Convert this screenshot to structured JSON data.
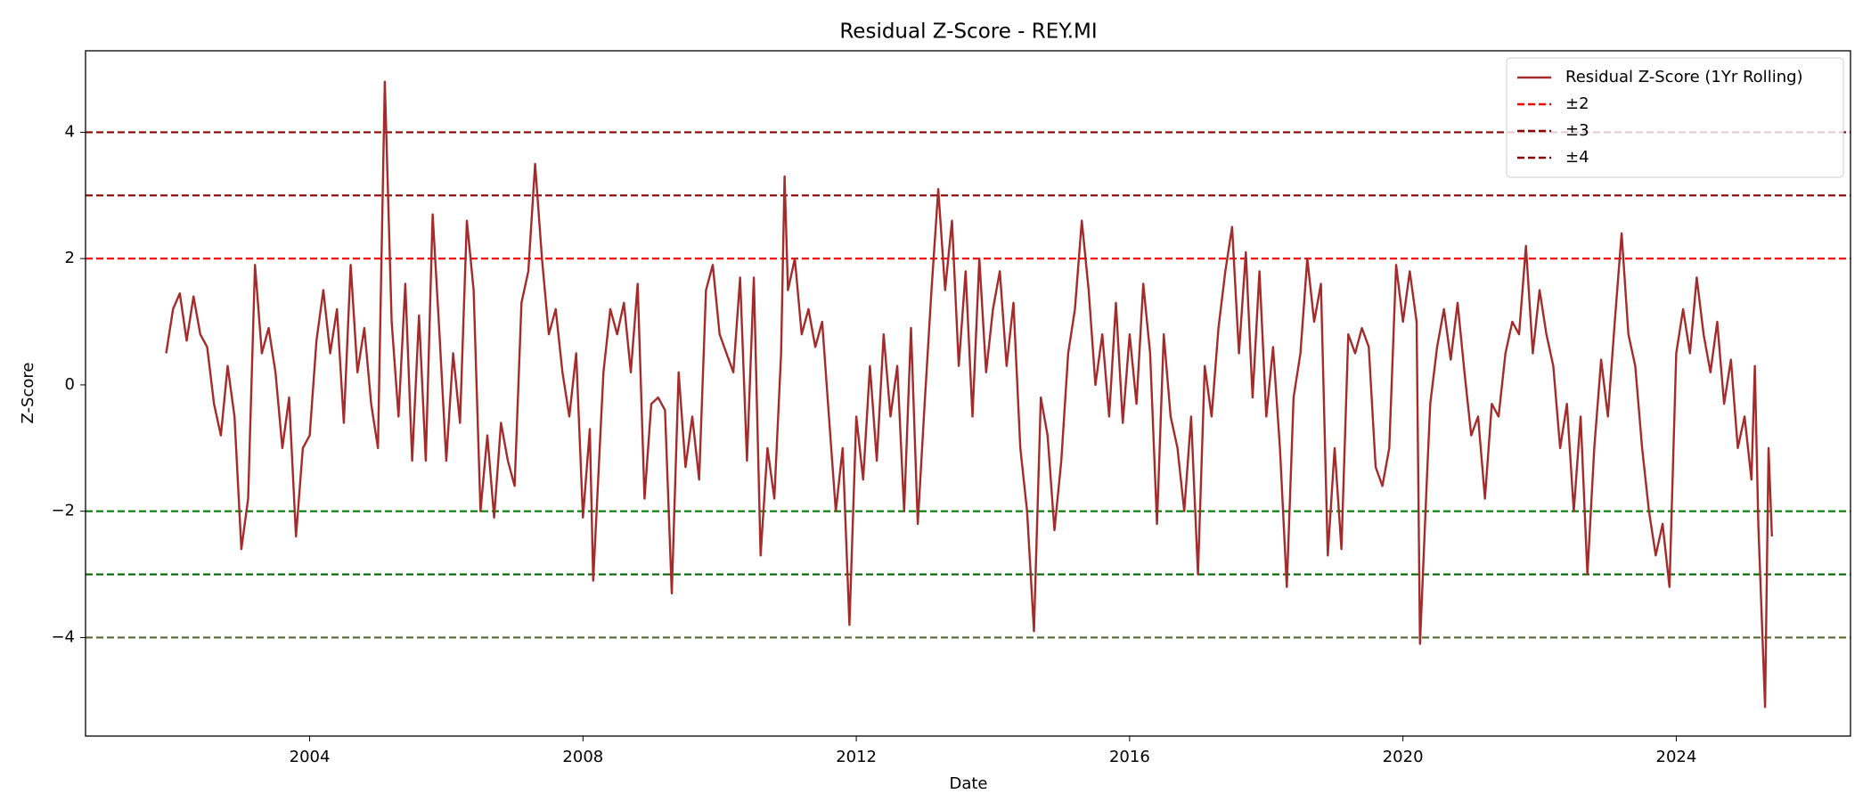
{
  "chart_data": {
    "type": "line",
    "title": "Residual Z-Score - REY.MI",
    "x_label": "Date",
    "y_label": "Z-Score",
    "xlim": [
      2000.72,
      2026.55
    ],
    "ylim": [
      -5.56,
      5.29
    ],
    "xticks": [
      2004,
      2008,
      2012,
      2016,
      2020,
      2024
    ],
    "yticks": [
      {
        "value": -4,
        "label": "−4"
      },
      {
        "value": -2,
        "label": "−2"
      },
      0,
      2,
      4
    ],
    "legend": "upper right",
    "grid": false,
    "x": [
      2001.9,
      2002.0,
      2002.1,
      2002.2,
      2002.3,
      2002.4,
      2002.5,
      2002.6,
      2002.7,
      2002.8,
      2002.9,
      2003.0,
      2003.1,
      2003.2,
      2003.3,
      2003.4,
      2003.5,
      2003.6,
      2003.7,
      2003.8,
      2003.9,
      2004.0,
      2004.1,
      2004.2,
      2004.3,
      2004.4,
      2004.5,
      2004.6,
      2004.7,
      2004.8,
      2004.9,
      2005.0,
      2005.1,
      2005.2,
      2005.3,
      2005.4,
      2005.5,
      2005.6,
      2005.7,
      2005.8,
      2005.9,
      2006.0,
      2006.1,
      2006.2,
      2006.3,
      2006.4,
      2006.5,
      2006.6,
      2006.7,
      2006.8,
      2006.9,
      2007.0,
      2007.1,
      2007.2,
      2007.3,
      2007.4,
      2007.5,
      2007.6,
      2007.7,
      2007.8,
      2007.9,
      2008.0,
      2008.1,
      2008.15,
      2008.3,
      2008.4,
      2008.5,
      2008.6,
      2008.7,
      2008.8,
      2008.9,
      2009.0,
      2009.1,
      2009.2,
      2009.3,
      2009.4,
      2009.5,
      2009.6,
      2009.7,
      2009.8,
      2009.9,
      2010.0,
      2010.1,
      2010.2,
      2010.3,
      2010.4,
      2010.5,
      2010.6,
      2010.7,
      2010.8,
      2010.9,
      2010.95,
      2011.0,
      2011.1,
      2011.2,
      2011.3,
      2011.4,
      2011.5,
      2011.6,
      2011.7,
      2011.8,
      2011.9,
      2012.0,
      2012.1,
      2012.2,
      2012.3,
      2012.4,
      2012.5,
      2012.6,
      2012.7,
      2012.8,
      2012.9,
      2013.0,
      2013.1,
      2013.2,
      2013.3,
      2013.4,
      2013.5,
      2013.6,
      2013.7,
      2013.8,
      2013.9,
      2014.0,
      2014.1,
      2014.2,
      2014.3,
      2014.4,
      2014.5,
      2014.6,
      2014.7,
      2014.8,
      2014.9,
      2015.0,
      2015.1,
      2015.2,
      2015.3,
      2015.4,
      2015.5,
      2015.6,
      2015.7,
      2015.8,
      2015.9,
      2016.0,
      2016.1,
      2016.2,
      2016.3,
      2016.4,
      2016.5,
      2016.6,
      2016.7,
      2016.8,
      2016.9,
      2017.0,
      2017.1,
      2017.2,
      2017.3,
      2017.4,
      2017.5,
      2017.6,
      2017.7,
      2017.8,
      2017.9,
      2018.0,
      2018.1,
      2018.2,
      2018.3,
      2018.4,
      2018.5,
      2018.6,
      2018.7,
      2018.8,
      2018.9,
      2019.0,
      2019.1,
      2019.2,
      2019.3,
      2019.4,
      2019.5,
      2019.6,
      2019.7,
      2019.8,
      2019.9,
      2020.0,
      2020.1,
      2020.2,
      2020.25,
      2020.35,
      2020.4,
      2020.5,
      2020.6,
      2020.7,
      2020.8,
      2020.9,
      2021.0,
      2021.1,
      2021.2,
      2021.3,
      2021.4,
      2021.5,
      2021.6,
      2021.7,
      2021.8,
      2021.9,
      2022.0,
      2022.1,
      2022.2,
      2022.3,
      2022.4,
      2022.5,
      2022.6,
      2022.7,
      2022.8,
      2022.9,
      2023.0,
      2023.1,
      2023.2,
      2023.3,
      2023.4,
      2023.5,
      2023.6,
      2023.7,
      2023.8,
      2023.9,
      2024.0,
      2024.1,
      2024.2,
      2024.3,
      2024.4,
      2024.5,
      2024.6,
      2024.7,
      2024.8,
      2024.9,
      2025.0,
      2025.1,
      2025.15,
      2025.2,
      2025.3,
      2025.35,
      2025.4
    ],
    "series": [
      {
        "name": "Residual Z-Score (1Yr Rolling)",
        "color": "#a52a2a",
        "values": [
          0.5,
          1.2,
          1.45,
          0.7,
          1.4,
          0.8,
          0.6,
          -0.3,
          -0.8,
          0.3,
          -0.5,
          -2.6,
          -1.8,
          1.9,
          0.5,
          0.9,
          0.2,
          -1.0,
          -0.2,
          -2.4,
          -1.0,
          -0.8,
          0.7,
          1.5,
          0.5,
          1.2,
          -0.6,
          1.9,
          0.2,
          0.9,
          -0.3,
          -1.0,
          4.8,
          1.0,
          -0.5,
          1.6,
          -1.2,
          1.1,
          -1.2,
          2.7,
          0.8,
          -1.2,
          0.5,
          -0.6,
          2.6,
          1.5,
          -2.0,
          -0.8,
          -2.1,
          -0.6,
          -1.2,
          -1.6,
          1.3,
          1.8,
          3.5,
          2.0,
          0.8,
          1.2,
          0.2,
          -0.5,
          0.5,
          -2.1,
          -0.7,
          -3.1,
          0.2,
          1.2,
          0.8,
          1.3,
          0.2,
          1.6,
          -1.8,
          -0.3,
          -0.2,
          -0.4,
          -3.3,
          0.2,
          -1.3,
          -0.5,
          -1.5,
          1.5,
          1.9,
          0.8,
          0.5,
          0.2,
          1.7,
          -1.2,
          1.7,
          -2.7,
          -1.0,
          -1.8,
          0.5,
          3.3,
          1.5,
          2.0,
          0.8,
          1.2,
          0.6,
          1.0,
          -0.5,
          -2.0,
          -1.0,
          -3.8,
          -0.5,
          -1.5,
          0.3,
          -1.2,
          0.8,
          -0.5,
          0.3,
          -2.0,
          0.9,
          -2.2,
          -0.3,
          1.5,
          3.1,
          1.5,
          2.6,
          0.3,
          1.8,
          -0.5,
          2.0,
          0.2,
          1.2,
          1.8,
          0.3,
          1.3,
          -1.0,
          -2.0,
          -3.9,
          -0.2,
          -0.8,
          -2.3,
          -1.2,
          0.5,
          1.2,
          2.6,
          1.5,
          0.0,
          0.8,
          -0.5,
          1.3,
          -0.6,
          0.8,
          -0.3,
          1.6,
          0.5,
          -2.2,
          0.8,
          -0.5,
          -1.0,
          -2.0,
          -0.5,
          -3.0,
          0.3,
          -0.5,
          0.9,
          1.8,
          2.5,
          0.5,
          2.1,
          -0.2,
          1.8,
          -0.5,
          0.6,
          -1.0,
          -3.2,
          -0.2,
          0.5,
          2.0,
          1.0,
          1.6,
          -2.7,
          -1.0,
          -2.6,
          0.8,
          0.5,
          0.9,
          0.6,
          -1.3,
          -1.6,
          -1.0,
          1.9,
          1.0,
          1.8,
          1.0,
          -4.1,
          -1.5,
          -0.3,
          0.6,
          1.2,
          0.4,
          1.3,
          0.2,
          -0.8,
          -0.5,
          -1.8,
          -0.3,
          -0.5,
          0.5,
          1.0,
          0.8,
          2.2,
          0.5,
          1.5,
          0.8,
          0.3,
          -1.0,
          -0.3,
          -2.0,
          -0.5,
          -3.0,
          -1.0,
          0.4,
          -0.5,
          1.0,
          2.4,
          0.8,
          0.3,
          -1.0,
          -2.0,
          -2.7,
          -2.2,
          -3.2,
          0.5,
          1.2,
          0.5,
          1.7,
          0.8,
          0.2,
          1.0,
          -0.3,
          0.4,
          -1.0,
          -0.5,
          -1.5,
          0.3,
          -2.2,
          -5.1,
          -1.0,
          -2.4
        ]
      }
    ],
    "thresholds": [
      {
        "name": "±2",
        "upper": 2,
        "lower": -2,
        "color": "red",
        "lower_color": "green"
      },
      {
        "name": "±3",
        "upper": 3,
        "lower": -3,
        "color": "darkred",
        "lower_color": "darkgreen"
      },
      {
        "name": "±4",
        "upper": 4,
        "lower": -4,
        "color": "#8b0000",
        "lower_color": "darkolivegreen"
      }
    ]
  }
}
